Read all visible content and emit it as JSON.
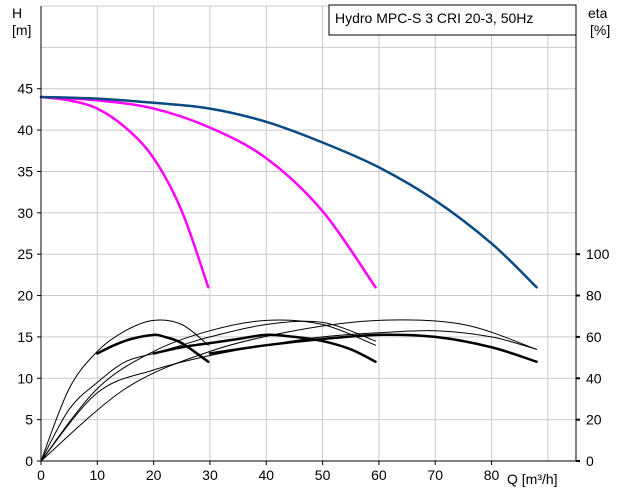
{
  "chart_data": {
    "type": "line",
    "title": "Hydro MPC-S 3 CRI 20-3, 50Hz",
    "xlabel": "Q [m³/h]",
    "ylabel_left": {
      "symbol": "H",
      "unit": "[m]"
    },
    "ylabel_right": {
      "symbol": "eta",
      "unit": "[%]"
    },
    "xlim": [
      0,
      95
    ],
    "ylim": [
      0,
      55
    ],
    "eta_lim": [
      0,
      100
    ],
    "x_ticks": [
      0,
      10,
      20,
      30,
      40,
      50,
      60,
      70,
      80
    ],
    "y_ticks": [
      0,
      5,
      10,
      15,
      20,
      25,
      30,
      35,
      40,
      45
    ],
    "eta_ticks": [
      0,
      20,
      40,
      60,
      80,
      100
    ],
    "grid": true,
    "colors": {
      "head_1_pump": "#ff00ff",
      "head_2_pumps": "#ff00ff",
      "head_3_pumps": "#0a4a82",
      "eta_curves": "#000000",
      "grid": "#c9c9c9"
    },
    "series": [
      {
        "axis": "H",
        "style": "magenta",
        "points": [
          [
            0,
            44.0
          ],
          [
            5,
            43.6
          ],
          [
            10,
            42.6
          ],
          [
            15,
            40.3
          ],
          [
            20,
            36.6
          ],
          [
            25,
            30.2
          ],
          [
            29.7,
            21.0
          ]
        ]
      },
      {
        "axis": "H",
        "style": "magenta",
        "points": [
          [
            0,
            44.0
          ],
          [
            10,
            43.6
          ],
          [
            20,
            42.6
          ],
          [
            30,
            40.3
          ],
          [
            40,
            36.6
          ],
          [
            50,
            30.2
          ],
          [
            59.4,
            21.0
          ]
        ]
      },
      {
        "axis": "H",
        "style": "blue",
        "points": [
          [
            0,
            44.0
          ],
          [
            10,
            43.8
          ],
          [
            20,
            43.3
          ],
          [
            30,
            42.6
          ],
          [
            40,
            41.0
          ],
          [
            50,
            38.5
          ],
          [
            60,
            35.5
          ],
          [
            70,
            31.5
          ],
          [
            80,
            26.3
          ],
          [
            88,
            21.0
          ]
        ]
      },
      {
        "axis": "eta",
        "style": "thin",
        "points": [
          [
            0,
            0
          ],
          [
            5,
            35
          ],
          [
            10,
            53
          ],
          [
            15,
            63
          ],
          [
            20,
            68
          ],
          [
            25,
            66
          ],
          [
            29.7,
            56
          ]
        ]
      },
      {
        "axis": "eta",
        "style": "thin",
        "points": [
          [
            0,
            0
          ],
          [
            10,
            35
          ],
          [
            20,
            53
          ],
          [
            30,
            63
          ],
          [
            40,
            68
          ],
          [
            50,
            66
          ],
          [
            59.4,
            56
          ]
        ]
      },
      {
        "axis": "eta",
        "style": "thin",
        "points": [
          [
            0,
            0
          ],
          [
            15,
            35
          ],
          [
            30,
            53
          ],
          [
            45,
            63
          ],
          [
            60,
            68
          ],
          [
            75,
            66
          ],
          [
            88,
            54
          ]
        ]
      },
      {
        "axis": "eta",
        "style": "thin",
        "points": [
          [
            0,
            0
          ],
          [
            5,
            25
          ],
          [
            10,
            38
          ],
          [
            15,
            48
          ],
          [
            20,
            52
          ],
          [
            25,
            56
          ],
          [
            30,
            60
          ],
          [
            40,
            66
          ],
          [
            50,
            67
          ],
          [
            59.4,
            58
          ]
        ]
      },
      {
        "axis": "eta",
        "style": "thin",
        "points": [
          [
            0,
            0
          ],
          [
            10,
            33
          ],
          [
            20,
            44
          ],
          [
            30,
            51
          ],
          [
            40,
            56
          ],
          [
            50,
            60
          ],
          [
            60,
            62
          ],
          [
            70,
            63
          ],
          [
            80,
            60
          ],
          [
            88,
            54
          ]
        ]
      },
      {
        "axis": "eta",
        "style": "bold",
        "points": [
          [
            10,
            52
          ],
          [
            13,
            56
          ],
          [
            16,
            59
          ],
          [
            20,
            61
          ],
          [
            22,
            60
          ],
          [
            25,
            57
          ],
          [
            29.7,
            48
          ]
        ]
      },
      {
        "axis": "eta",
        "style": "bold",
        "points": [
          [
            20,
            52
          ],
          [
            25,
            55
          ],
          [
            30,
            57
          ],
          [
            35,
            59
          ],
          [
            40,
            61
          ],
          [
            45,
            60
          ],
          [
            50,
            58
          ],
          [
            55,
            54
          ],
          [
            59.4,
            48
          ]
        ]
      },
      {
        "axis": "eta",
        "style": "bold",
        "points": [
          [
            30,
            52
          ],
          [
            40,
            56
          ],
          [
            50,
            59
          ],
          [
            60,
            61
          ],
          [
            70,
            60
          ],
          [
            80,
            55
          ],
          [
            88,
            48
          ]
        ]
      }
    ]
  }
}
